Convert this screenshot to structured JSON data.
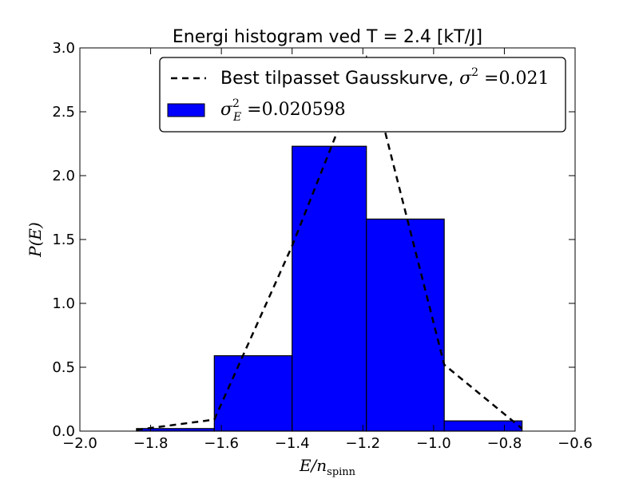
{
  "chart_data": {
    "type": "bar",
    "title": "Energi histogram ved T = 2.4 [kT/J]",
    "xlabel": {
      "main": "E/n",
      "sub": "spinn"
    },
    "ylabel": "P(E)",
    "xlim": [
      -2.0,
      -0.6
    ],
    "ylim": [
      0.0,
      3.0
    ],
    "xticks": [
      "−2.0",
      "−1.8",
      "−1.6",
      "−1.4",
      "−1.2",
      "−1.0",
      "−0.8",
      "−0.6"
    ],
    "yticks": [
      "0.0",
      "0.5",
      "1.0",
      "1.5",
      "2.0",
      "2.5",
      "3.0"
    ],
    "histogram": {
      "bins": [
        {
          "x0": -1.84,
          "x1": -1.62,
          "value": 0.02
        },
        {
          "x0": -1.62,
          "x1": -1.4,
          "value": 0.59
        },
        {
          "x0": -1.4,
          "x1": -1.19,
          "value": 2.23
        },
        {
          "x0": -1.19,
          "x1": -0.97,
          "value": 1.66
        },
        {
          "x0": -0.97,
          "x1": -0.75,
          "value": 0.08
        }
      ],
      "color": "#0000ff",
      "edge_color": "#000000"
    },
    "fit_curve": {
      "x": [
        -1.84,
        -1.62,
        -1.4,
        -1.19,
        -0.97,
        -0.75
      ],
      "y": [
        0.01,
        0.09,
        1.45,
        2.92,
        0.52,
        0.02
      ],
      "color": "#000000",
      "style": "dashed"
    },
    "legend": {
      "placement": "top-right",
      "entries": [
        {
          "kind": "line",
          "text": "Best tilpasset Gausskurve, ",
          "math_base": "σ",
          "math_sup": "2",
          "math_sub": "",
          "math_tail": " =0.021"
        },
        {
          "kind": "patch",
          "text": "",
          "math_base": "σ",
          "math_sup": "2",
          "math_sub": "E",
          "math_tail": " =0.020598"
        }
      ]
    }
  }
}
